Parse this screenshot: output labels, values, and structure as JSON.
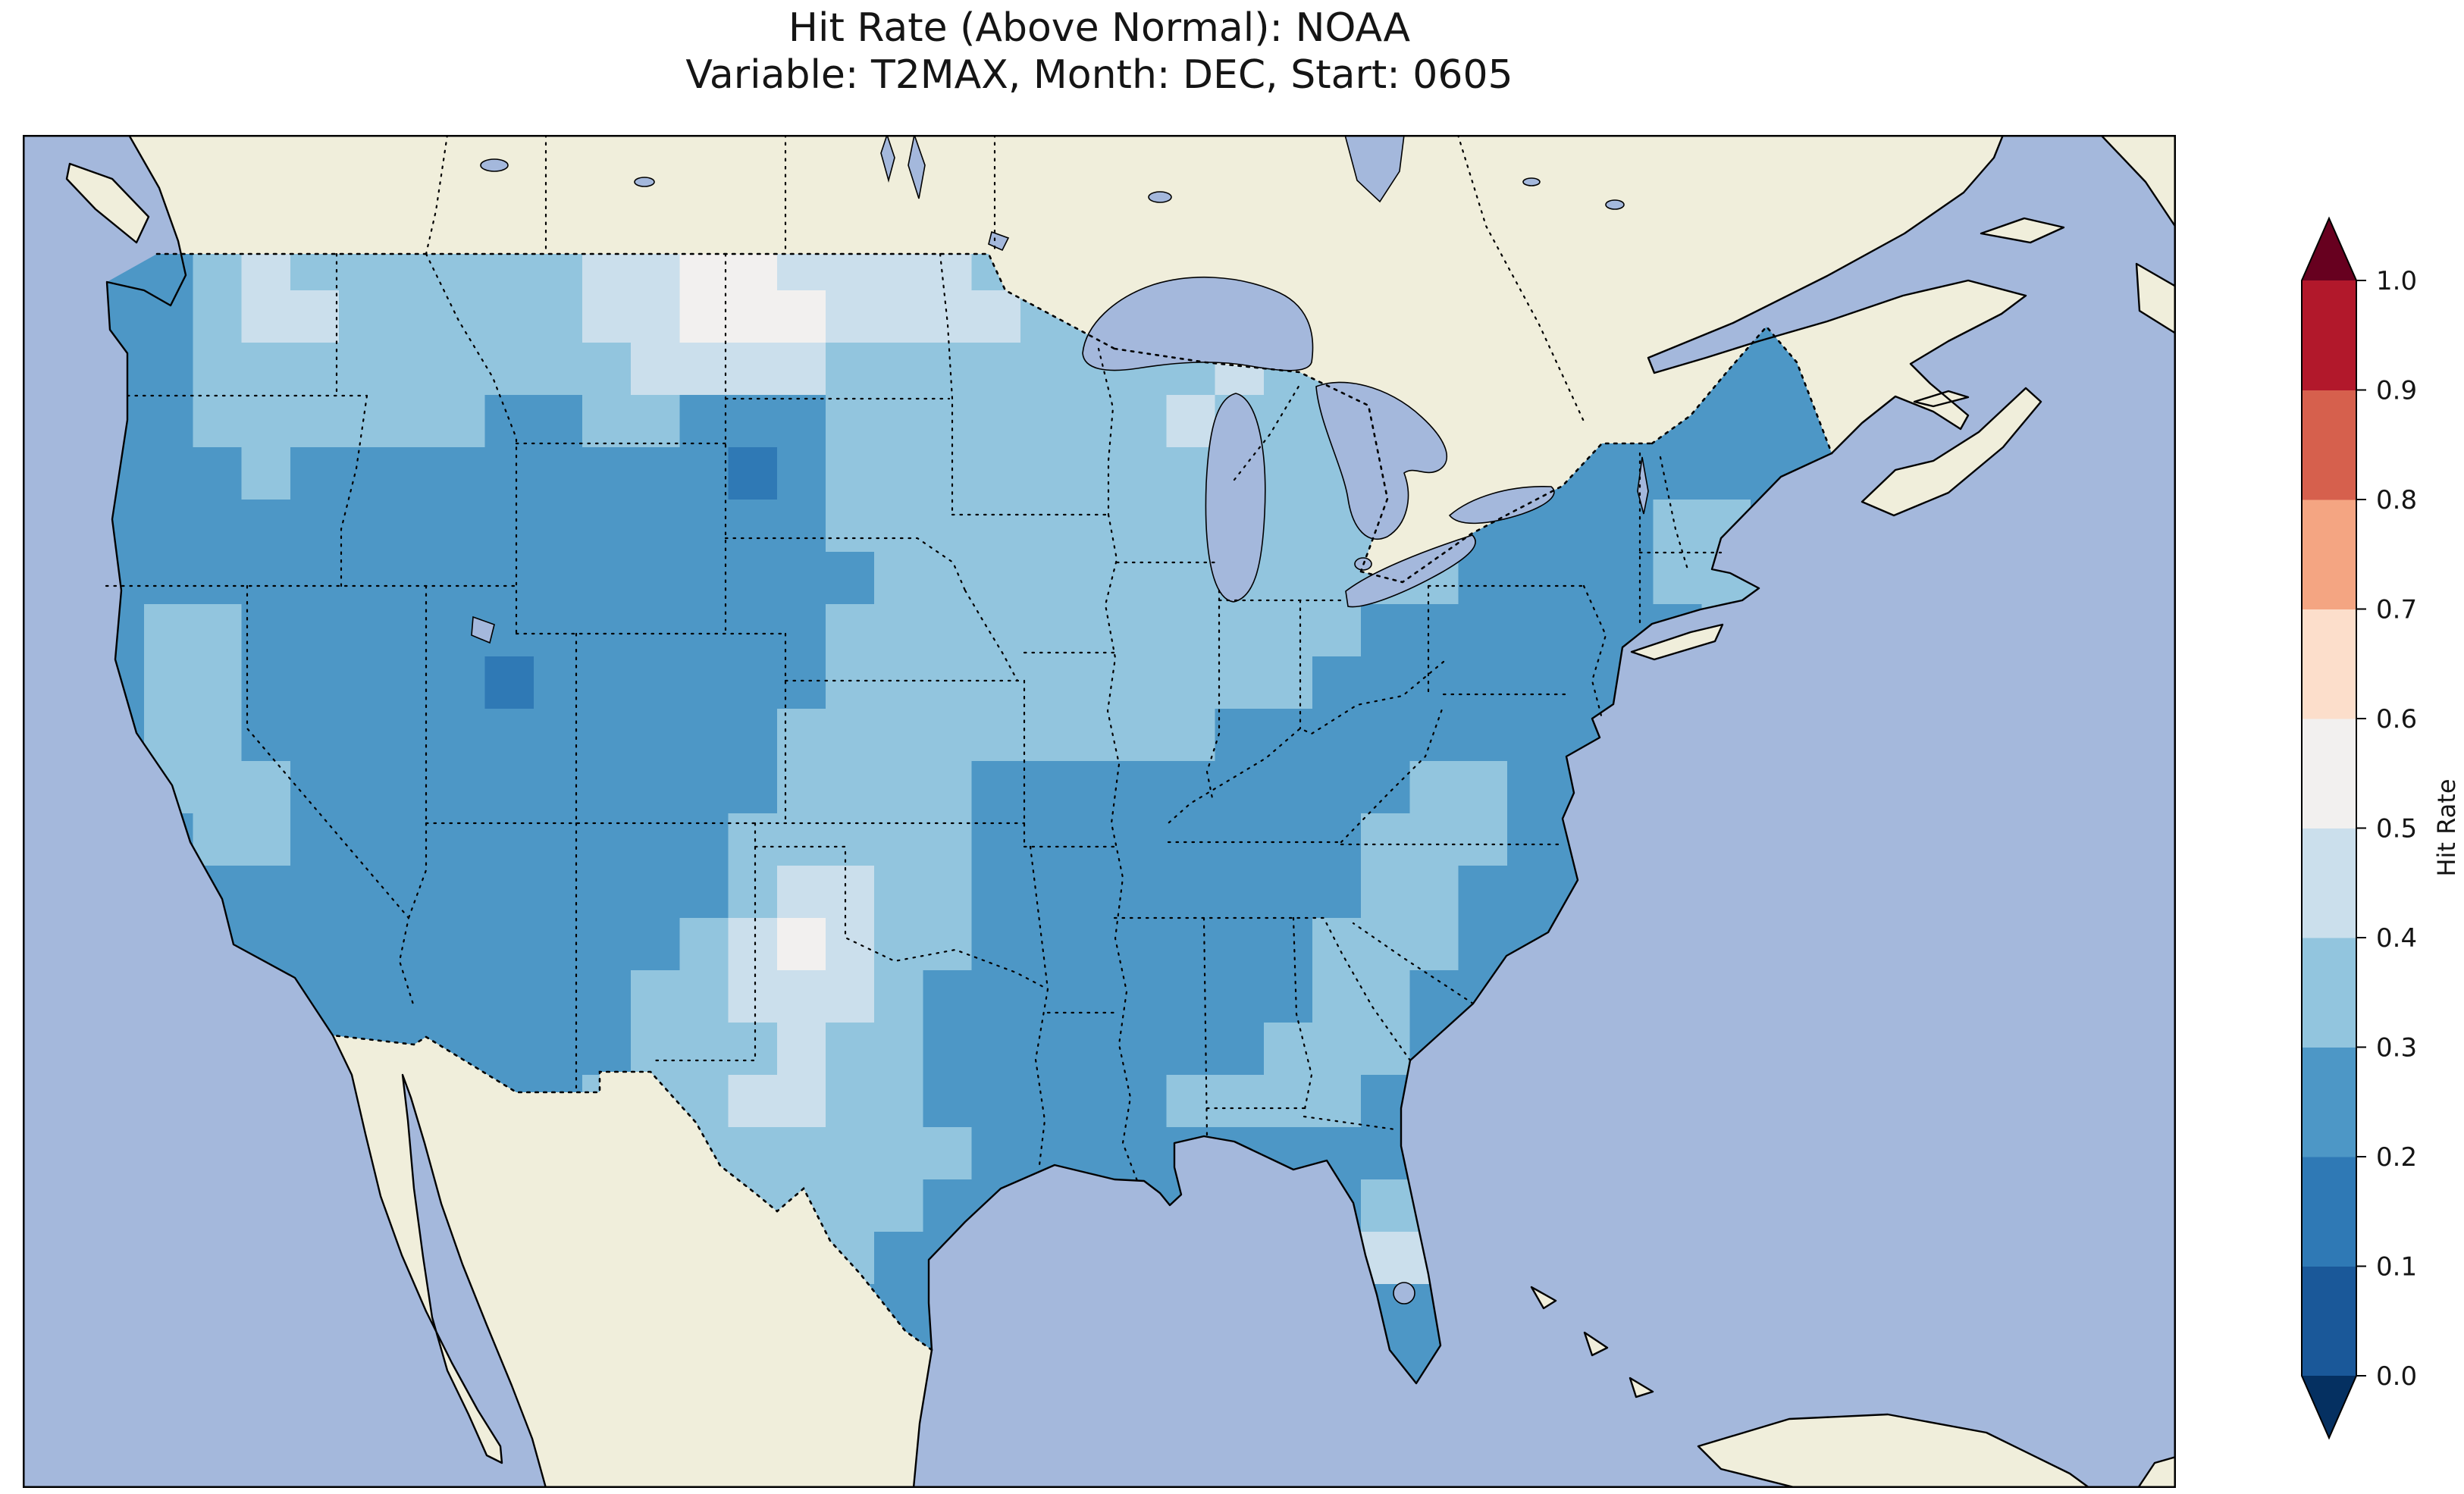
{
  "figure": {
    "title_line1": "Hit Rate (Above Normal): NOAA",
    "title_line2": "Variable: T2MAX, Month: DEC, Start: 0605"
  },
  "colorbar": {
    "label": "Hit Rate",
    "ticks": [
      "1.0",
      "0.9",
      "0.8",
      "0.7",
      "0.6",
      "0.5",
      "0.4",
      "0.3",
      "0.2",
      "0.1",
      "0.0"
    ],
    "colors_bottom_to_top": [
      "#053061",
      "#1a5899",
      "#2f79b5",
      "#4d97c6",
      "#92c5de",
      "#cbdfec",
      "#f2f0ef",
      "#fcdecb",
      "#f4a582",
      "#d6604d",
      "#b2182b",
      "#67001f"
    ],
    "extend": "both"
  },
  "map": {
    "ocean_color": "#a4b8dc",
    "land_color": "#f0eedb",
    "lake_color": "#a4b8dc",
    "coastline_color": "#000000",
    "boundary_style": "dotted"
  },
  "chart_data": {
    "type": "heatmap",
    "title": "Hit Rate (Above Normal): NOAA",
    "subtitle": "Variable: T2MAX, Month: DEC, Start: 0605",
    "source": "NOAA",
    "variable": "T2MAX",
    "month": "DEC",
    "start": "0605",
    "region": "Contiguous United States",
    "colorbar_label": "Hit Rate",
    "colorbar_range": [
      0.0,
      1.0
    ],
    "colorbar_bin_size": 0.1,
    "colormap": "RdBu_r discrete, extend both",
    "legend_position": "right",
    "observed_range": [
      0.1,
      0.6
    ],
    "value_encoding": "each digit d means hit rate in [d/10,(d+1)/10); grid runs west-to-east per row, rows north-to-south over CONUS",
    "grid": {
      "cols": 36,
      "rows": 22,
      "cells": [
        "223433333344554444333333333322222222",
        "223443333344555444433333333222222222",
        "223333333334444333333334333222222222",
        "223333332233222333333343333222222222",
        "222322222222212333333333333222222222",
        "222222222222222333333333333322223322",
        "222222222222222233333333333322223333",
        "233222222222222333333333332222222333",
        "233222221222222333333333322222222333",
        "233222222222223333333332222222222333",
        "233322222222223333222222222332222222",
        "223322222222233333222222223332222222",
        "222222222222234433222222223322222222",
        "222222222222345433222222233322222222",
        "222222222223344432222222233222222222",
        "222222222223334332222222333222222222",
        "222222222233344332222233332222222222",
        "222222222233333333222222222322222222",
        "222222222233333332222222223322222222",
        "222222222222333322222222224422222222",
        "222222222222233222222222222222222222",
        "222222222222222222222222222222222222"
      ]
    }
  }
}
